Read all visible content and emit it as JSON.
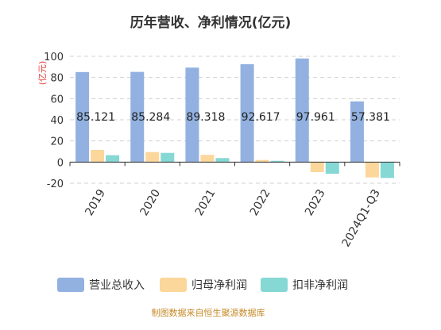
{
  "chart_data": {
    "type": "bar",
    "title": "历年营收、净利情况(亿元)",
    "ylabel": "(亿元)",
    "xlabel": "",
    "categories": [
      "2019",
      "2020",
      "2021",
      "2022",
      "2023",
      "2024Q1-Q3"
    ],
    "series": [
      {
        "name": "营业总收入",
        "color": "#92b1e0",
        "values": [
          85.121,
          85.284,
          89.318,
          92.617,
          97.961,
          57.381
        ]
      },
      {
        "name": "归母净利润",
        "color": "#fcd79b",
        "values": [
          11.5,
          9.5,
          6.8,
          2.0,
          -9.5,
          -14.5
        ]
      },
      {
        "name": "扣非净利润",
        "color": "#85d8d4",
        "values": [
          6.5,
          8.7,
          3.8,
          1.2,
          -11.0,
          -15.0
        ]
      }
    ],
    "data_labels": [
      "85.121",
      "85.284",
      "89.318",
      "92.617",
      "97.961",
      "57.381"
    ],
    "ylim": [
      -20,
      100
    ],
    "yticks": [
      -20,
      0,
      20,
      40,
      60,
      80,
      100
    ],
    "grid": true,
    "legend_position": "bottom"
  },
  "source_text": "制图数据来自恒生聚源数据库"
}
